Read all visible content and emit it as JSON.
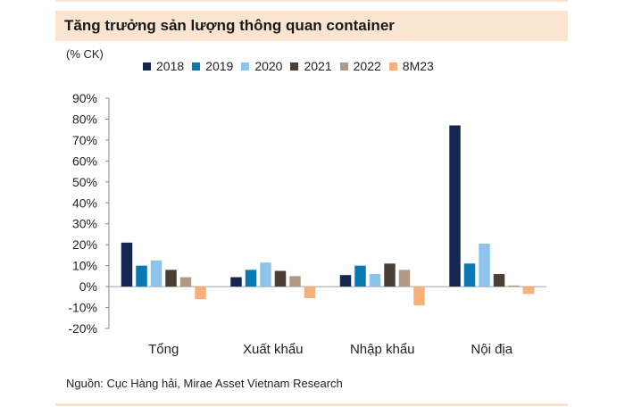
{
  "header": {
    "title": "Tăng trưởng sản lượng thông quan container"
  },
  "unit_label": "(% CK)",
  "source": "Nguồn: Cục Hàng hải, Mirae Asset Vietnam Research",
  "colors": {
    "title_bg": "#fbe4d0",
    "series": [
      "#13284f",
      "#0a79b3",
      "#8cc5e9",
      "#4a3f35",
      "#b09a86",
      "#f7b07a"
    ]
  },
  "chart_data": {
    "type": "bar",
    "title": "Tăng trưởng sản lượng thông quan container",
    "ylabel": "(% CK)",
    "xlabel": "",
    "categories": [
      "Tổng",
      "Xuất khẩu",
      "Nhập khẩu",
      "Nội địa"
    ],
    "ylim": [
      -20,
      90
    ],
    "yticks": [
      -20,
      -10,
      0,
      10,
      20,
      30,
      40,
      50,
      60,
      70,
      80,
      90
    ],
    "ytick_labels": [
      "-20%",
      "-10%",
      "0%",
      "10%",
      "20%",
      "30%",
      "40%",
      "50%",
      "60%",
      "70%",
      "80%",
      "90%"
    ],
    "legend_position": "top",
    "grid": false,
    "series": [
      {
        "name": "2018",
        "values": [
          21,
          4.5,
          5.5,
          77
        ]
      },
      {
        "name": "2019",
        "values": [
          10,
          8,
          10,
          11
        ]
      },
      {
        "name": "2020",
        "values": [
          12.5,
          11.5,
          6,
          20.5
        ]
      },
      {
        "name": "2021",
        "values": [
          8,
          7.5,
          11,
          6
        ]
      },
      {
        "name": "2022",
        "values": [
          4.5,
          5,
          8,
          0.5
        ]
      },
      {
        "name": "8M23",
        "values": [
          -6,
          -5.5,
          -9,
          -3.5
        ]
      }
    ]
  }
}
